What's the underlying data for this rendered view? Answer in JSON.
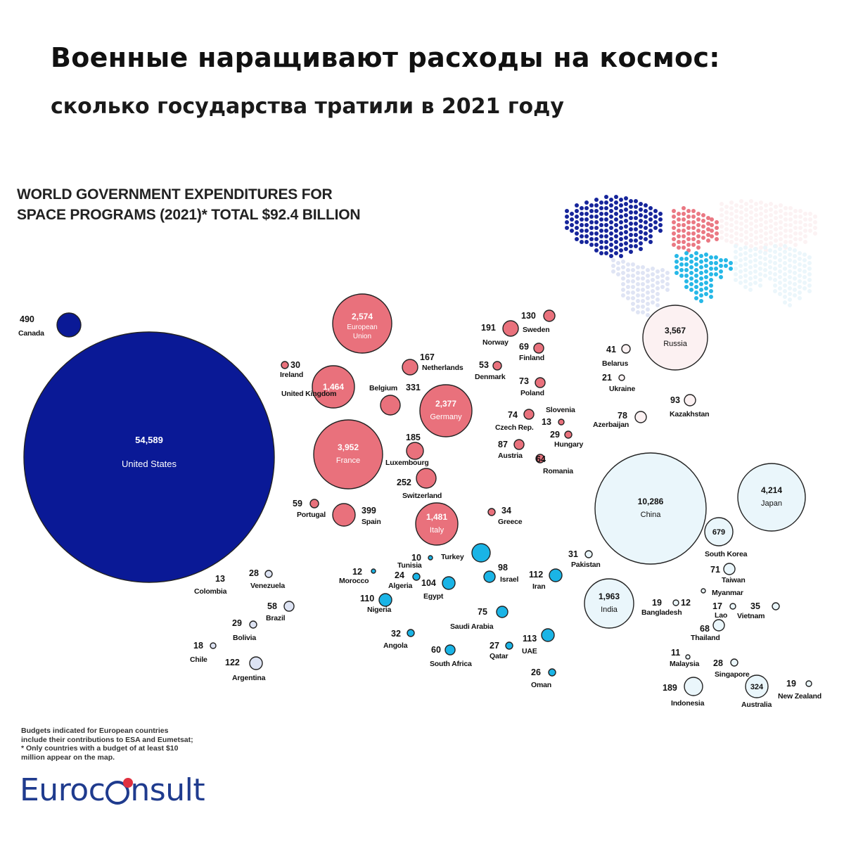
{
  "headline": "Военные наращивают расходы на космос:",
  "subheadline": "сколько государства тратили в 2021 году",
  "chart_data": {
    "type": "bubble",
    "title_lines": [
      "WORLD GOVERNMENT EXPENDITURES FOR",
      "SPACE PROGRAMS (2021)* TOTAL $92.4 BILLION"
    ],
    "unit": "",
    "colors": {
      "north_america": "#0a1996",
      "europe": "#e9717c",
      "south_america": "#dde3f3",
      "africa_middle_east": "#1ab4e6",
      "asia_pacific": "#eaf6fb",
      "russia_cis": "#fcf1f2"
    },
    "points": [
      {
        "name": "Canada",
        "label": "490",
        "value": 490,
        "region": "north_america"
      },
      {
        "name": "United States",
        "label": "54,589",
        "value": 54589,
        "region": "north_america"
      },
      {
        "name": "European Union",
        "label": "2,574",
        "value": 2574,
        "region": "europe"
      },
      {
        "name": "Ireland",
        "label": "30",
        "value": 30,
        "region": "europe"
      },
      {
        "name": "United Kingdom",
        "label": "1,464",
        "value": 1464,
        "region": "europe"
      },
      {
        "name": "Netherlands",
        "label": "167",
        "value": 167,
        "region": "europe"
      },
      {
        "name": "Belgium",
        "label": "331",
        "value": 331,
        "region": "europe"
      },
      {
        "name": "Germany",
        "label": "2,377",
        "value": 2377,
        "region": "europe"
      },
      {
        "name": "France",
        "label": "3,952",
        "value": 3952,
        "region": "europe"
      },
      {
        "name": "Luxembourg",
        "label": "185",
        "value": 185,
        "region": "europe"
      },
      {
        "name": "Switzerland",
        "label": "252",
        "value": 252,
        "region": "europe"
      },
      {
        "name": "Portugal",
        "label": "59",
        "value": 59,
        "region": "europe"
      },
      {
        "name": "Spain",
        "label": "399",
        "value": 399,
        "region": "europe"
      },
      {
        "name": "Italy",
        "label": "1,481",
        "value": 1481,
        "region": "europe"
      },
      {
        "name": "Norway",
        "label": "191",
        "value": 191,
        "region": "europe"
      },
      {
        "name": "Sweden",
        "label": "130",
        "value": 130,
        "region": "europe"
      },
      {
        "name": "Finland",
        "label": "69",
        "value": 69,
        "region": "europe"
      },
      {
        "name": "Denmark",
        "label": "53",
        "value": 53,
        "region": "europe"
      },
      {
        "name": "Poland",
        "label": "73",
        "value": 73,
        "region": "europe"
      },
      {
        "name": "Czech Rep.",
        "label": "74",
        "value": 74,
        "region": "europe"
      },
      {
        "name": "Slovenia",
        "label": "13",
        "value": 13,
        "region": "europe"
      },
      {
        "name": "Hungary",
        "label": "29",
        "value": 29,
        "region": "europe"
      },
      {
        "name": "Austria",
        "label": "87",
        "value": 87,
        "region": "europe"
      },
      {
        "name": "Romania",
        "label": "64",
        "value": 64,
        "region": "europe"
      },
      {
        "name": "Greece",
        "label": "34",
        "value": 34,
        "region": "europe"
      },
      {
        "name": "Russia",
        "label": "3,567",
        "value": 3567,
        "region": "russia_cis"
      },
      {
        "name": "Belarus",
        "label": "41",
        "value": 41,
        "region": "russia_cis"
      },
      {
        "name": "Ukraine",
        "label": "21",
        "value": 21,
        "region": "russia_cis"
      },
      {
        "name": "Kazakhstan",
        "label": "93",
        "value": 93,
        "region": "russia_cis"
      },
      {
        "name": "Azerbaijan",
        "label": "78",
        "value": 78,
        "region": "russia_cis"
      },
      {
        "name": "China",
        "label": "10,286",
        "value": 10286,
        "region": "asia_pacific"
      },
      {
        "name": "Japan",
        "label": "4,214",
        "value": 4214,
        "region": "asia_pacific"
      },
      {
        "name": "South Korea",
        "label": "679",
        "value": 679,
        "region": "asia_pacific"
      },
      {
        "name": "Taiwan",
        "label": "71",
        "value": 71,
        "region": "asia_pacific"
      },
      {
        "name": "India",
        "label": "1,963",
        "value": 1963,
        "region": "asia_pacific"
      },
      {
        "name": "Pakistan",
        "label": "31",
        "value": 31,
        "region": "asia_pacific"
      },
      {
        "name": "Bangladesh",
        "label": "19",
        "value": 19,
        "region": "asia_pacific"
      },
      {
        "name": "Myanmar",
        "label": "12",
        "value": 12,
        "region": "asia_pacific"
      },
      {
        "name": "Lao",
        "label": "17",
        "value": 17,
        "region": "asia_pacific"
      },
      {
        "name": "Vietnam",
        "label": "35",
        "value": 35,
        "region": "asia_pacific"
      },
      {
        "name": "Thailand",
        "label": "68",
        "value": 68,
        "region": "asia_pacific"
      },
      {
        "name": "Malaysia",
        "label": "11",
        "value": 11,
        "region": "asia_pacific"
      },
      {
        "name": "Singapore",
        "label": "28",
        "value": 28,
        "region": "asia_pacific"
      },
      {
        "name": "Indonesia",
        "label": "189",
        "value": 189,
        "region": "asia_pacific"
      },
      {
        "name": "Australia",
        "label": "324",
        "value": 324,
        "region": "asia_pacific"
      },
      {
        "name": "New Zealand",
        "label": "19",
        "value": 19,
        "region": "asia_pacific"
      },
      {
        "name": "Turkey",
        "label": "",
        "value": null,
        "region": "africa_middle_east"
      },
      {
        "name": "Tunisia",
        "label": "10",
        "value": 10,
        "region": "africa_middle_east"
      },
      {
        "name": "Morocco",
        "label": "12",
        "value": 12,
        "region": "africa_middle_east"
      },
      {
        "name": "Algeria",
        "label": "24",
        "value": 24,
        "region": "africa_middle_east"
      },
      {
        "name": "Israel",
        "label": "98",
        "value": 98,
        "region": "africa_middle_east"
      },
      {
        "name": "Iran",
        "label": "112",
        "value": 112,
        "region": "africa_middle_east"
      },
      {
        "name": "Egypt",
        "label": "104",
        "value": 104,
        "region": "africa_middle_east"
      },
      {
        "name": "Nigeria",
        "label": "110",
        "value": 110,
        "region": "africa_middle_east"
      },
      {
        "name": "Saudi Arabia",
        "label": "75",
        "value": 75,
        "region": "africa_middle_east"
      },
      {
        "name": "Angola",
        "label": "32",
        "value": 32,
        "region": "africa_middle_east"
      },
      {
        "name": "South Africa",
        "label": "60",
        "value": 60,
        "region": "africa_middle_east"
      },
      {
        "name": "Qatar",
        "label": "27",
        "value": 27,
        "region": "africa_middle_east"
      },
      {
        "name": "UAE",
        "label": "113",
        "value": 113,
        "region": "africa_middle_east"
      },
      {
        "name": "Oman",
        "label": "26",
        "value": 26,
        "region": "africa_middle_east"
      },
      {
        "name": "Venezuela",
        "label": "28",
        "value": 28,
        "region": "south_america"
      },
      {
        "name": "Colombia",
        "label": "13",
        "value": 13,
        "region": "south_america"
      },
      {
        "name": "Brazil",
        "label": "58",
        "value": 58,
        "region": "south_america"
      },
      {
        "name": "Bolivia",
        "label": "29",
        "value": 29,
        "region": "south_america"
      },
      {
        "name": "Chile",
        "label": "18",
        "value": 18,
        "region": "south_america"
      },
      {
        "name": "Argentina",
        "label": "122",
        "value": 122,
        "region": "south_america"
      }
    ]
  },
  "footnote_lines": [
    "Budgets indicated for European countries",
    "include their contributions to ESA and Eumetsat;",
    "* Only countries with a budget of at least  $10",
    "million appear on the map."
  ],
  "brand": {
    "left": "Euroc",
    "right": "nsult"
  }
}
